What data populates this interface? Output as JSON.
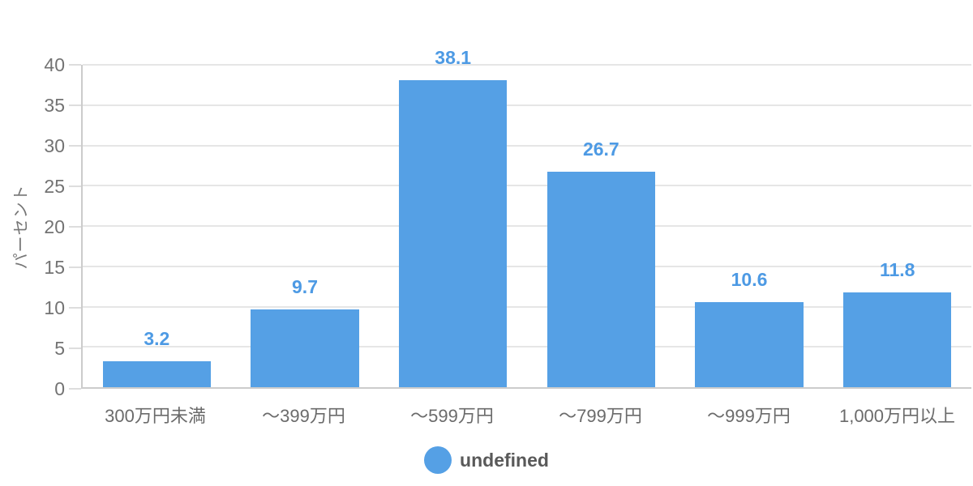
{
  "chart_data": {
    "type": "bar",
    "title": "",
    "xlabel": "",
    "ylabel": "パーセント",
    "categories": [
      "300万円未満",
      "〜399万円",
      "〜599万円",
      "〜799万円",
      "〜999万円",
      "1,000万円以上"
    ],
    "values": [
      3.2,
      9.7,
      38.1,
      26.7,
      10.6,
      11.8
    ],
    "value_labels": [
      "3.2",
      "9.7",
      "38.1",
      "26.7",
      "10.6",
      "11.8"
    ],
    "ylim": [
      0,
      40
    ],
    "yticks": [
      0,
      5,
      10,
      15,
      20,
      25,
      30,
      35,
      40
    ],
    "grid": "horizontal",
    "legend": {
      "position": "bottom",
      "items": [
        {
          "label": "undefined",
          "marker": "circle",
          "color": "#55A0E5"
        }
      ]
    },
    "colors": {
      "bar": "#55A0E5",
      "value_label": "#4D9AE4",
      "gridline": "#E6E6E6",
      "axis_line": "#CCCCCC",
      "tick_mark": "#DDDDDD",
      "tick_label": "#737373",
      "x_label": "#6B6B6B",
      "y_title": "#767676",
      "legend_text": "#595959",
      "background": "#FFFFFF"
    }
  }
}
